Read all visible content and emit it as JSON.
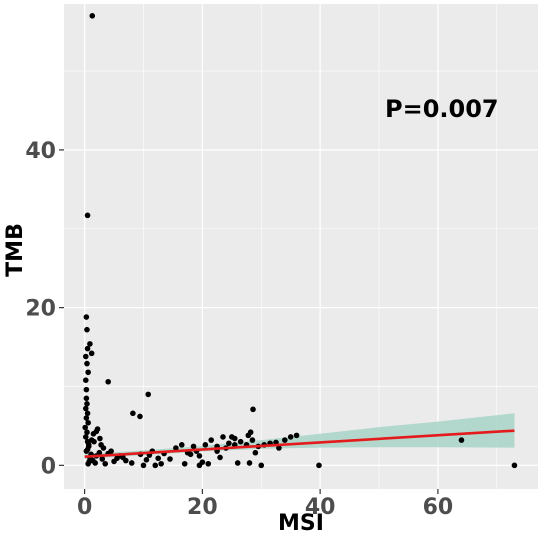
{
  "chart_data": {
    "type": "scatter",
    "title": "",
    "xlabel": "MSI",
    "ylabel": "TMB",
    "xlim": [
      -3.5,
      77
    ],
    "ylim": [
      -3,
      58.5
    ],
    "x_ticks": [
      0,
      20,
      40,
      60
    ],
    "y_ticks": [
      0,
      20,
      40
    ],
    "x_tick_labels": [
      "0",
      "20",
      "40",
      "60"
    ],
    "y_tick_labels": [
      "0",
      "20",
      "40"
    ],
    "grid": true,
    "annotation": "P=0.007",
    "colors": {
      "panel": "#ebebeb",
      "grid": "#ffffff",
      "points": "#000000",
      "fit_line": "#e41a1c",
      "confidence_band": "#a8d5c8"
    },
    "points": {
      "x": [
        1.3,
        0.5,
        0.3,
        0.4,
        0.9,
        0.5,
        1.2,
        0.2,
        0.4,
        0.6,
        0.2,
        0.3,
        4.0,
        10.8,
        8.2,
        9.4,
        0.3,
        0.4,
        0.2,
        0.5,
        0.3,
        0.6,
        0.1,
        0.4,
        0.2,
        0.5,
        0.7,
        0.3,
        1.5,
        2.0,
        2.2,
        2.6,
        1.2,
        1.6,
        2.8,
        3.2,
        1.1,
        0.9,
        1.4,
        1.8,
        0.6,
        0.8,
        1.0,
        2.0,
        0.5,
        0.7,
        3.0,
        4.0,
        5.0,
        6.0,
        7.0,
        8.0,
        3.5,
        4.5,
        5.5,
        6.5,
        2.5,
        9.5,
        10.5,
        11.5,
        12.5,
        13.5,
        14.5,
        15.5,
        16.5,
        17.5,
        18.5,
        19.5,
        20.5,
        21.5,
        22.5,
        23.5,
        24.5,
        25.5,
        26.5,
        27.5,
        28.5,
        29.5,
        30.5,
        31.5,
        32.5,
        34.0,
        35.0,
        36.0,
        33.0,
        27.8,
        28.2,
        28.6,
        19.5,
        21.0,
        24.0,
        26.0,
        25.0,
        22.5,
        17.0,
        18.0,
        30.0,
        28.0,
        25.5,
        23.0,
        19.0,
        20.0,
        10.0,
        11.0,
        12.0,
        13.0,
        29.0,
        39.8,
        64.0,
        73.0
      ],
      "y": [
        57.0,
        31.7,
        18.8,
        17.2,
        15.4,
        14.8,
        14.2,
        13.8,
        12.9,
        11.8,
        10.8,
        9.6,
        10.6,
        9.0,
        6.6,
        6.2,
        8.5,
        7.8,
        7.2,
        6.6,
        6.0,
        5.4,
        4.8,
        4.2,
        3.6,
        3.0,
        2.4,
        1.8,
        4.0,
        4.3,
        4.6,
        3.4,
        3.2,
        3.0,
        2.6,
        2.2,
        1.4,
        1.0,
        0.6,
        0.3,
        0.2,
        0.5,
        0.8,
        1.2,
        2.0,
        2.6,
        0.8,
        1.5,
        0.5,
        1.2,
        0.6,
        0.3,
        0.2,
        1.8,
        0.9,
        1.0,
        1.6,
        1.4,
        0.7,
        1.8,
        0.9,
        1.5,
        0.8,
        2.2,
        2.6,
        1.6,
        2.4,
        1.2,
        2.6,
        3.2,
        2.4,
        3.6,
        2.8,
        3.4,
        3.0,
        2.6,
        3.2,
        2.4,
        2.6,
        2.8,
        2.9,
        3.2,
        3.6,
        3.8,
        2.2,
        3.8,
        4.2,
        7.1,
        0.0,
        0.2,
        2.2,
        0.3,
        3.6,
        1.8,
        0.2,
        1.4,
        0.0,
        0.3,
        2.6,
        1.0,
        1.8,
        0.4,
        0.0,
        1.3,
        0.0,
        0.2,
        1.6,
        0.0,
        3.2,
        0.0
      ]
    },
    "fit_line": {
      "x": [
        0,
        73
      ],
      "y": [
        1.1,
        4.4
      ]
    },
    "confidence_band": {
      "x": [
        0,
        10,
        20,
        30,
        40,
        50,
        60,
        73
      ],
      "lower": [
        0.8,
        1.3,
        1.75,
        2.1,
        2.25,
        2.3,
        2.3,
        2.25
      ],
      "upper": [
        1.4,
        1.9,
        2.45,
        3.2,
        4.0,
        4.85,
        5.55,
        6.6
      ]
    }
  }
}
